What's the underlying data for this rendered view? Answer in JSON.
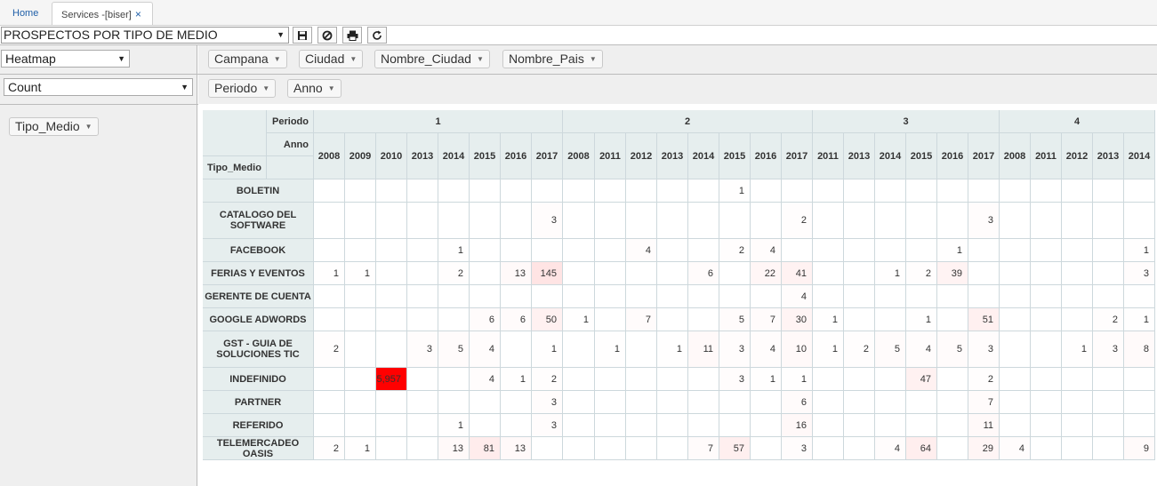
{
  "tabs": {
    "home_label": "Home",
    "active_label": "Services -[biser]"
  },
  "toolbar": {
    "report_name": "PROSPECTOS POR TIPO DE MEDIO"
  },
  "renderer": {
    "selected": "Heatmap"
  },
  "aggregator": {
    "selected": "Count"
  },
  "unused_attrs": [
    "Campana",
    "Ciudad",
    "Nombre_Ciudad",
    "Nombre_Pais"
  ],
  "col_attrs": [
    "Periodo",
    "Anno"
  ],
  "row_attrs": [
    "Tipo_Medio"
  ],
  "colors": {
    "heat_max": "#ff0000",
    "header_bg": "#e6eeee",
    "link": "#1f5fa8"
  },
  "chart_data": {
    "type": "heatmap",
    "col_attr_labels": [
      "Periodo",
      "Anno"
    ],
    "row_attr_label": "Tipo_Medio",
    "periods": [
      {
        "label": "1",
        "years": [
          "2008",
          "2009",
          "2010",
          "2013",
          "2014",
          "2015",
          "2016",
          "2017"
        ]
      },
      {
        "label": "2",
        "years": [
          "2008",
          "2011",
          "2012",
          "2013",
          "2014",
          "2015",
          "2016",
          "2017"
        ]
      },
      {
        "label": "3",
        "years": [
          "2011",
          "2013",
          "2014",
          "2015",
          "2016",
          "2017"
        ]
      },
      {
        "label": "4",
        "years": [
          "2008",
          "2011",
          "2012",
          "2013",
          "2014"
        ]
      }
    ],
    "rows": [
      {
        "label": "BOLETIN",
        "values": [
          "",
          "",
          "",
          "",
          "",
          "",
          "",
          "",
          "",
          "",
          "",
          "",
          "",
          "1",
          "",
          "",
          "",
          "",
          "",
          "",
          "",
          "",
          "",
          "",
          "",
          "",
          ""
        ]
      },
      {
        "label": "CATALOGO DEL SOFTWARE",
        "values": [
          "",
          "",
          "",
          "",
          "",
          "",
          "",
          "3",
          "",
          "",
          "",
          "",
          "",
          "",
          "",
          "2",
          "",
          "",
          "",
          "",
          "",
          "3",
          "",
          "",
          "",
          "",
          ""
        ]
      },
      {
        "label": "FACEBOOK",
        "values": [
          "",
          "",
          "",
          "",
          "1",
          "",
          "",
          "",
          "",
          "",
          "4",
          "",
          "",
          "2",
          "4",
          "",
          "",
          "",
          "",
          "",
          "1",
          "",
          "",
          "",
          "",
          "",
          "1"
        ]
      },
      {
        "label": "FERIAS Y EVENTOS",
        "values": [
          "1",
          "1",
          "",
          "",
          "2",
          "",
          "13",
          "145",
          "",
          "",
          "",
          "",
          "6",
          "",
          "22",
          "41",
          "",
          "",
          "1",
          "2",
          "39",
          "",
          "",
          "",
          "",
          "",
          "3"
        ]
      },
      {
        "label": "GERENTE DE CUENTA",
        "values": [
          "",
          "",
          "",
          "",
          "",
          "",
          "",
          "",
          "",
          "",
          "",
          "",
          "",
          "",
          "",
          "4",
          "",
          "",
          "",
          "",
          "",
          "",
          "",
          "",
          "",
          "",
          ""
        ]
      },
      {
        "label": "GOOGLE ADWORDS",
        "values": [
          "",
          "",
          "",
          "",
          "",
          "6",
          "6",
          "50",
          "1",
          "",
          "7",
          "",
          "",
          "5",
          "7",
          "30",
          "1",
          "",
          "",
          "1",
          "",
          "51",
          "",
          "",
          "",
          "2",
          "1"
        ]
      },
      {
        "label": "GST - GUIA DE SOLUCIONES TIC",
        "values": [
          "2",
          "",
          "",
          "3",
          "5",
          "4",
          "",
          "1",
          "",
          "1",
          "",
          "1",
          "11",
          "3",
          "4",
          "10",
          "1",
          "2",
          "5",
          "4",
          "5",
          "3",
          "",
          "",
          "1",
          "3",
          "8"
        ]
      },
      {
        "label": "INDEFINIDO",
        "values": [
          "",
          "",
          "5,957",
          "",
          "",
          "4",
          "1",
          "2",
          "",
          "",
          "",
          "",
          "",
          "3",
          "1",
          "1",
          "",
          "",
          "",
          "47",
          "",
          "2",
          "",
          "",
          "",
          "",
          ""
        ]
      },
      {
        "label": "PARTNER",
        "values": [
          "",
          "",
          "",
          "",
          "",
          "",
          "",
          "3",
          "",
          "",
          "",
          "",
          "",
          "",
          "",
          "6",
          "",
          "",
          "",
          "",
          "",
          "7",
          "",
          "",
          "",
          "",
          ""
        ]
      },
      {
        "label": "REFERIDO",
        "values": [
          "",
          "",
          "",
          "",
          "1",
          "",
          "",
          "3",
          "",
          "",
          "",
          "",
          "",
          "",
          "",
          "16",
          "",
          "",
          "",
          "",
          "",
          "11",
          "",
          "",
          "",
          "",
          ""
        ]
      },
      {
        "label": "TELEMERCADEO OASIS",
        "values": [
          "2",
          "1",
          "",
          "",
          "13",
          "81",
          "13",
          "",
          "",
          "",
          "",
          "",
          "7",
          "57",
          "",
          "3",
          "",
          "",
          "4",
          "64",
          "",
          "29",
          "4",
          "",
          "",
          "",
          "9"
        ]
      }
    ]
  }
}
